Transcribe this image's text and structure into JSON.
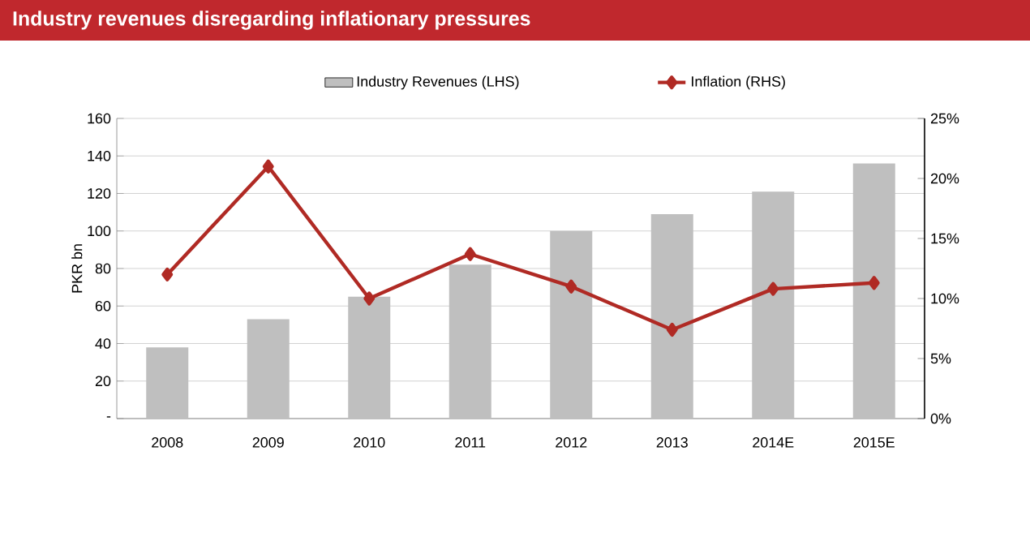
{
  "chart_data": {
    "type": "bar",
    "title": "Industry revenues disregarding inflationary pressures",
    "ylabel": "PKR bn",
    "categories": [
      "2008",
      "2009",
      "2010",
      "2011",
      "2012",
      "2013",
      "2014E",
      "2015E"
    ],
    "series": [
      {
        "name": "Industry Revenues (LHS)",
        "color": "#bfbfbf",
        "values": [
          38,
          53,
          65,
          82,
          100,
          109,
          121,
          136
        ]
      },
      {
        "name": "Inflation (RHS)",
        "type": "line",
        "axis": "y2",
        "color": "#b02a24",
        "values": [
          12.0,
          21.0,
          10.0,
          13.7,
          11.0,
          7.4,
          10.8,
          11.3
        ]
      }
    ],
    "ylim": [
      0,
      160
    ],
    "yticks": [
      {
        "value": 0,
        "label": "-"
      },
      20,
      40,
      60,
      80,
      100,
      120,
      140,
      160
    ],
    "y2lim": [
      0,
      25
    ],
    "y2ticks": [
      {
        "value": 0,
        "label": "0%"
      },
      {
        "value": 5,
        "label": "5%"
      },
      {
        "value": 10,
        "label": "10%"
      },
      {
        "value": 15,
        "label": "15%"
      },
      {
        "value": 20,
        "label": "20%"
      },
      {
        "value": 25,
        "label": "25%"
      }
    ],
    "grid": "y",
    "legend": "top",
    "marker": "diamond"
  }
}
